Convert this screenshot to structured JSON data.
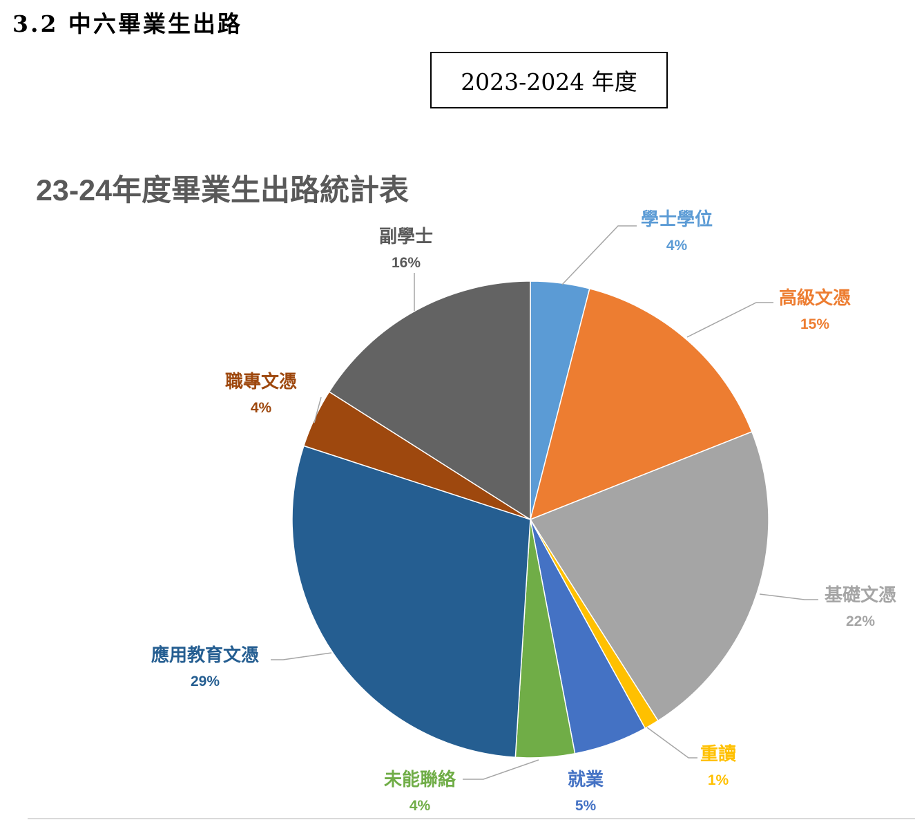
{
  "document": {
    "section_heading": "3.2 中六畢業生出路",
    "year_box": "2023-2024 年度"
  },
  "chart_data": {
    "type": "pie",
    "title": "23-24年度畢業生出路統計表",
    "start_angle_deg": 0,
    "direction": "clockwise",
    "slices": [
      {
        "label": "學士學位",
        "value": 4,
        "value_text": "4%",
        "color": "#5b9bd5",
        "label_color": "#5b9bd5"
      },
      {
        "label": "高級文憑",
        "value": 15,
        "value_text": "15%",
        "color": "#ed7d31",
        "label_color": "#ed7d31"
      },
      {
        "label": "基礎文憑",
        "value": 22,
        "value_text": "22%",
        "color": "#a5a5a5",
        "label_color": "#a5a5a5"
      },
      {
        "label": "重讀",
        "value": 1,
        "value_text": "1%",
        "color": "#ffc000",
        "label_color": "#ffc000"
      },
      {
        "label": "就業",
        "value": 5,
        "value_text": "5%",
        "color": "#4472c4",
        "label_color": "#4472c4"
      },
      {
        "label": "未能聯絡",
        "value": 4,
        "value_text": "4%",
        "color": "#70ad47",
        "label_color": "#70ad47"
      },
      {
        "label": "應用教育文憑",
        "value": 29,
        "value_text": "29%",
        "color": "#255e91",
        "label_color": "#255e91"
      },
      {
        "label": "職專文憑",
        "value": 4,
        "value_text": "4%",
        "color": "#9e480e",
        "label_color": "#9e480e"
      },
      {
        "label": "副學士",
        "value": 16,
        "value_text": "16%",
        "color": "#636363",
        "label_color": "#595959"
      }
    ]
  }
}
